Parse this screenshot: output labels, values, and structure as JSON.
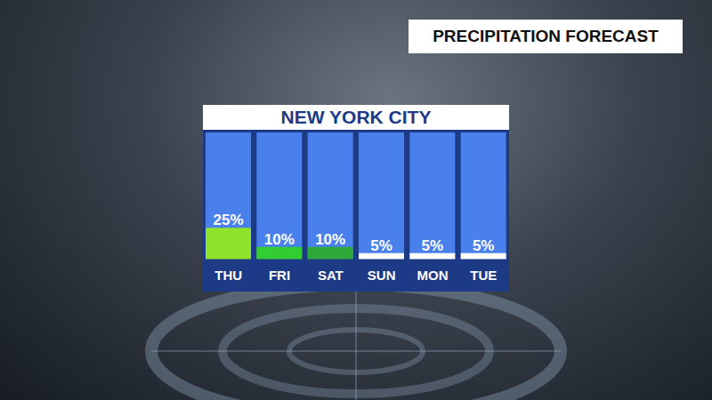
{
  "chart_data": {
    "type": "bar",
    "title": "NEW YORK CITY",
    "subtitle": "PRECIPITATION FORECAST",
    "categories": [
      "THU",
      "FRI",
      "SAT",
      "SUN",
      "MON",
      "TUE"
    ],
    "values": [
      25,
      10,
      10,
      5,
      5,
      5
    ],
    "value_labels": [
      "25%",
      "10%",
      "10%",
      "5%",
      "5%",
      "5%"
    ],
    "colors": [
      "#8fe32a",
      "#33cc33",
      "#2fa83a",
      "#ffffff",
      "#ffffff",
      "#ffffff"
    ],
    "ylim": [
      0,
      100
    ],
    "data_labels": true,
    "tick_labels": "x"
  }
}
